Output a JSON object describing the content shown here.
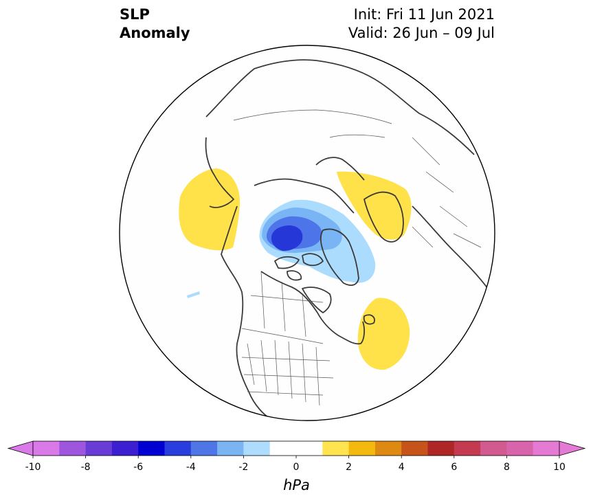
{
  "header": {
    "title_line1": "SLP",
    "title_line2": "Anomaly",
    "init": "Init: Fri 11 Jun 2021",
    "valid": "Valid: 26 Jun – 09 Jul"
  },
  "map": {
    "projection": "north-polar-stereographic",
    "ocean_color": "#fefefe",
    "coastline_color": "#3a3a3a",
    "anomalies": [
      {
        "name": "arctic-low",
        "level_hpa": -1,
        "color": "#abdbfd"
      },
      {
        "name": "arctic-low",
        "level_hpa": -2,
        "color": "#79b4f4"
      },
      {
        "name": "arctic-low",
        "level_hpa": -3,
        "color": "#4d74e8"
      },
      {
        "name": "arctic-low-core",
        "level_hpa": -4,
        "color": "#2637d8"
      },
      {
        "name": "north-pacific-high",
        "level_hpa": 1,
        "color": "#ffe14a"
      },
      {
        "name": "scandinavia-high",
        "level_hpa": 1,
        "color": "#ffe14a"
      },
      {
        "name": "north-atlantic-high",
        "level_hpa": 1,
        "color": "#ffe14a"
      }
    ]
  },
  "colorbar": {
    "units": "hPa",
    "ticks": [
      "-10",
      "-8",
      "-6",
      "-4",
      "-2",
      "0",
      "2",
      "4",
      "6",
      "8",
      "10"
    ],
    "extend": "both",
    "colors": [
      "#da79e8",
      "#9f56de",
      "#6a3cd6",
      "#3b1fd1",
      "#0000d3",
      "#2a3ede",
      "#4f76e6",
      "#7bb4f2",
      "#addcfc",
      "#ffffff",
      "#ffffff",
      "#ffe34f",
      "#f3b90c",
      "#de8a12",
      "#c6541a",
      "#ae2625",
      "#c43b51",
      "#d25a8e",
      "#d865ab",
      "#e57ad4"
    ],
    "min_color": "#da79e8",
    "max_color": "#e57ad4"
  }
}
